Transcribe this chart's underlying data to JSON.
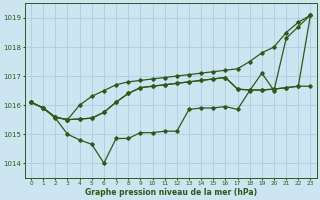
{
  "title": "Graphe pression niveau de la mer (hPa)",
  "background_color": "#cce5f0",
  "grid_color": "#aacfe0",
  "line_color": "#2d5a1b",
  "xlim": [
    -0.5,
    23.5
  ],
  "ylim": [
    1013.5,
    1019.5
  ],
  "yticks": [
    1014,
    1015,
    1016,
    1017,
    1018,
    1019
  ],
  "xticks": [
    0,
    1,
    2,
    3,
    4,
    5,
    6,
    7,
    8,
    9,
    10,
    11,
    12,
    13,
    14,
    15,
    16,
    17,
    18,
    19,
    20,
    21,
    22,
    23
  ],
  "line1": [
    1016.1,
    1015.9,
    1015.55,
    1015.0,
    1014.8,
    1014.65,
    1014.0,
    1014.85,
    1014.85,
    1015.05,
    1015.05,
    1015.1,
    1015.1,
    1015.85,
    1015.9,
    1015.9,
    1015.95,
    1015.85,
    1016.5,
    1017.1,
    1016.5,
    1018.3,
    1018.7,
    1019.1
  ],
  "line2": [
    1016.1,
    1015.9,
    1015.58,
    1015.5,
    1016.0,
    1016.3,
    1016.5,
    1016.7,
    1016.8,
    1016.85,
    1016.9,
    1016.95,
    1017.0,
    1017.05,
    1017.1,
    1017.15,
    1017.2,
    1017.25,
    1017.5,
    1017.8,
    1018.0,
    1018.5,
    1018.85,
    1019.1
  ],
  "line3": [
    1016.1,
    1015.9,
    1015.58,
    1015.5,
    1015.52,
    1015.55,
    1015.75,
    1016.1,
    1016.4,
    1016.6,
    1016.65,
    1016.7,
    1016.75,
    1016.8,
    1016.85,
    1016.9,
    1016.95,
    1016.55,
    1016.52,
    1016.52,
    1016.55,
    1016.6,
    1016.65,
    1019.1
  ],
  "line4": [
    1016.1,
    1015.9,
    1015.58,
    1015.5,
    1015.52,
    1015.55,
    1015.75,
    1016.1,
    1016.4,
    1016.6,
    1016.65,
    1016.7,
    1016.75,
    1016.8,
    1016.85,
    1016.9,
    1016.95,
    1016.55,
    1016.52,
    1016.52,
    1016.55,
    1016.6,
    1016.65,
    1016.65
  ]
}
